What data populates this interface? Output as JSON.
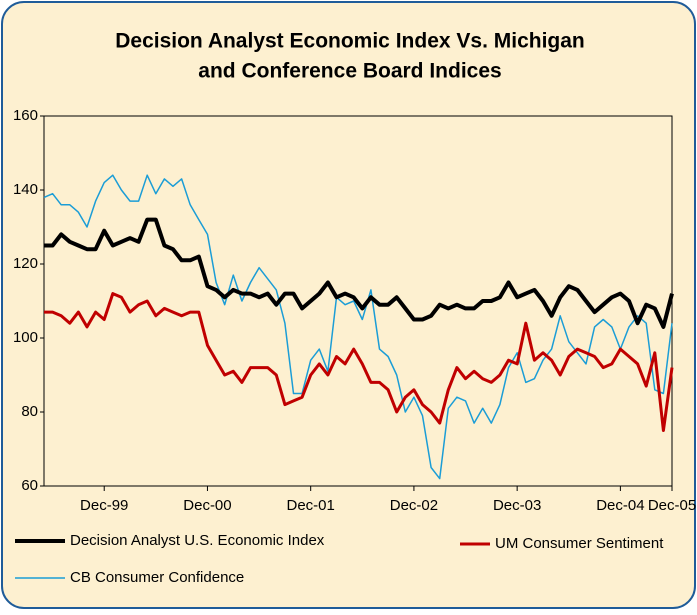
{
  "chart_data": {
    "type": "line",
    "title": [
      "Decision Analyst Economic Index Vs. Michigan",
      "and Conference Board Indices"
    ],
    "categories": [
      null,
      null,
      null,
      null,
      null,
      null,
      null,
      "Dec-99",
      null,
      null,
      null,
      null,
      null,
      null,
      null,
      null,
      null,
      null,
      null,
      "Dec-00",
      null,
      null,
      null,
      null,
      null,
      null,
      null,
      null,
      null,
      null,
      null,
      "Dec-01",
      null,
      null,
      null,
      null,
      null,
      null,
      null,
      null,
      null,
      null,
      null,
      "Dec-02",
      null,
      null,
      null,
      null,
      null,
      null,
      null,
      null,
      null,
      null,
      null,
      "Dec-03",
      null,
      null,
      null,
      null,
      null,
      null,
      null,
      null,
      null,
      null,
      null,
      "Dec-04",
      null,
      null,
      null,
      null,
      null,
      "Dec-05"
    ],
    "ylim": [
      60,
      160
    ],
    "yticks": [
      60,
      80,
      100,
      120,
      140,
      160
    ],
    "series": [
      {
        "name": "Decision Analyst U.S. Economic Index",
        "color": "#000000",
        "values": [
          125,
          125,
          128,
          126,
          125,
          124,
          124,
          129,
          125,
          126,
          127,
          126,
          132,
          132,
          125,
          124,
          121,
          121,
          122,
          114,
          113,
          111,
          113,
          112,
          112,
          111,
          112,
          109,
          112,
          112,
          108,
          110,
          112,
          115,
          111,
          112,
          111,
          108,
          111,
          109,
          109,
          111,
          108,
          105,
          105,
          106,
          109,
          108,
          109,
          108,
          108,
          110,
          110,
          111,
          115,
          111,
          112,
          113,
          110,
          106,
          111,
          114,
          113,
          110,
          107,
          109,
          111,
          112,
          110,
          104,
          109,
          108,
          103,
          112
        ]
      },
      {
        "name": "UM Consumer Sentiment",
        "color": "#c00000",
        "values": [
          107,
          107,
          106,
          104,
          107,
          103,
          107,
          105,
          112,
          111,
          107,
          109,
          110,
          106,
          108,
          107,
          106,
          107,
          107,
          98,
          94,
          90,
          91,
          88,
          92,
          92,
          92,
          90,
          82,
          83,
          84,
          90,
          93,
          90,
          95,
          93,
          97,
          93,
          88,
          88,
          86,
          80,
          84,
          86,
          82,
          80,
          77,
          86,
          92,
          89,
          91,
          89,
          88,
          90,
          94,
          93,
          104,
          94,
          96,
          94,
          90,
          95,
          97,
          96,
          95,
          92,
          93,
          97,
          95,
          93,
          87,
          96,
          75,
          92
        ]
      },
      {
        "name": "CB Consumer Confidence",
        "color": "#1b9dd6",
        "values": [
          138,
          139,
          136,
          136,
          134,
          130,
          137,
          142,
          144,
          140,
          137,
          137,
          144,
          139,
          143,
          141,
          143,
          136,
          132,
          128,
          115,
          109,
          117,
          110,
          115,
          119,
          116,
          113,
          104,
          85,
          85,
          94,
          97,
          91,
          111,
          109,
          110,
          105,
          113,
          97,
          95,
          90,
          80,
          84,
          79,
          65,
          62,
          81,
          84,
          83,
          77,
          81,
          77,
          82,
          92,
          96,
          88,
          89,
          94,
          97,
          106,
          99,
          96,
          93,
          103,
          105,
          103,
          97,
          103,
          106,
          104,
          86,
          85,
          104
        ]
      }
    ]
  }
}
